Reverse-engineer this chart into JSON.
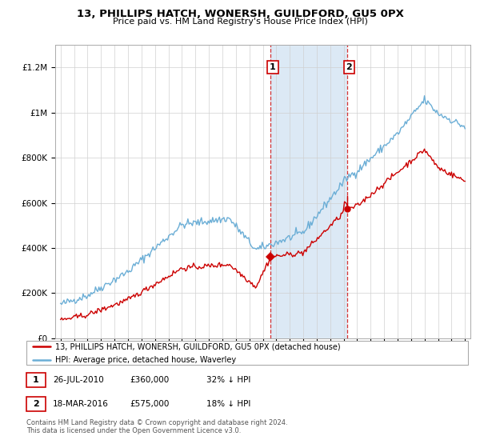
{
  "title": "13, PHILLIPS HATCH, WONERSH, GUILDFORD, GU5 0PX",
  "subtitle": "Price paid vs. HM Land Registry's House Price Index (HPI)",
  "legend_line1": "13, PHILLIPS HATCH, WONERSH, GUILDFORD, GU5 0PX (detached house)",
  "legend_line2": "HPI: Average price, detached house, Waverley",
  "transaction1_date": "26-JUL-2010",
  "transaction1_price": "£360,000",
  "transaction1_hpi": "32% ↓ HPI",
  "transaction2_date": "18-MAR-2016",
  "transaction2_price": "£575,000",
  "transaction2_hpi": "18% ↓ HPI",
  "footer": "Contains HM Land Registry data © Crown copyright and database right 2024.\nThis data is licensed under the Open Government Licence v3.0.",
  "hpi_color": "#6baed6",
  "price_color": "#cc0000",
  "highlight_color": "#dce9f5",
  "vline_color": "#cc0000",
  "ylim": [
    0,
    1300000
  ],
  "yticks": [
    0,
    200000,
    400000,
    600000,
    800000,
    1000000,
    1200000
  ],
  "start_year": 1995,
  "end_year": 2025
}
